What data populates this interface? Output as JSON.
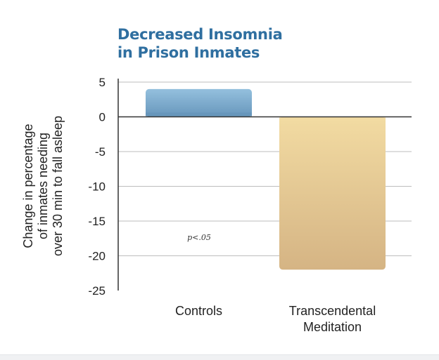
{
  "chart_data": {
    "type": "bar",
    "title": "Decreased Insomnia in Prison Inmates",
    "title_lines": [
      "Decreased Insomnia",
      "in Prison Inmates"
    ],
    "categories": [
      "Controls",
      "Transcendental Meditation"
    ],
    "category_lines": [
      [
        "Controls"
      ],
      [
        "Transcendental",
        "Meditation"
      ]
    ],
    "values": [
      4,
      -22
    ],
    "colors": [
      "#7aa9cc",
      "#e6c898"
    ],
    "ylabel": "Change in percentage of inmates needing over 30 min to fall asleep",
    "ylabel_lines": [
      "Change in percentage",
      "of inmates needing",
      "over 30 min to fall asleep"
    ],
    "yticks": [
      5,
      0,
      -5,
      -10,
      -15,
      -20,
      -25
    ],
    "ylim": [
      -25,
      5
    ],
    "grid": true,
    "annotation": "p<.05"
  }
}
